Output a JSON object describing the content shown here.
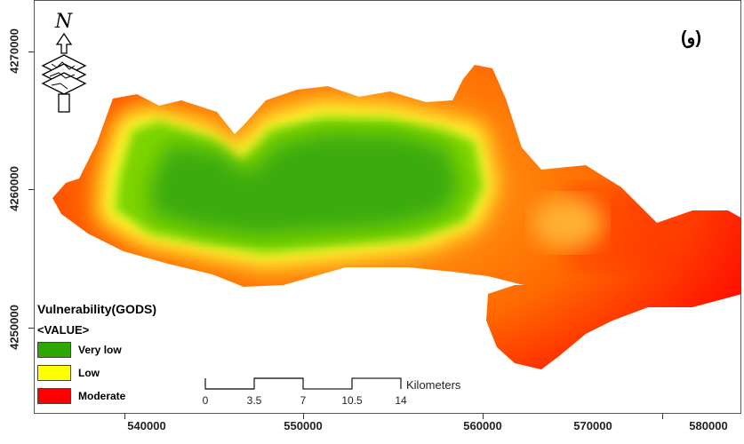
{
  "panel_label": "(و)",
  "legend": {
    "title": "Vulnerability(GODS)",
    "subtitle": "<VALUE>",
    "items": [
      {
        "label": "Very low",
        "color": "#2ea800"
      },
      {
        "label": "Low",
        "color": "#ffff00"
      },
      {
        "label": "Moderate",
        "color": "#ff0000"
      }
    ]
  },
  "y_axis": {
    "ticks": [
      "4270000",
      "4260000",
      "4250000"
    ]
  },
  "x_axis": {
    "ticks": [
      "540000",
      "550000",
      "560000",
      "570000",
      "580000"
    ]
  },
  "scale_bar": {
    "labels": [
      "0",
      "3.5",
      "7",
      "10.5",
      "14"
    ],
    "unit": "Kilometers"
  },
  "north_arrow": {
    "label": "N",
    "icon": "north-arrow-icon"
  }
}
